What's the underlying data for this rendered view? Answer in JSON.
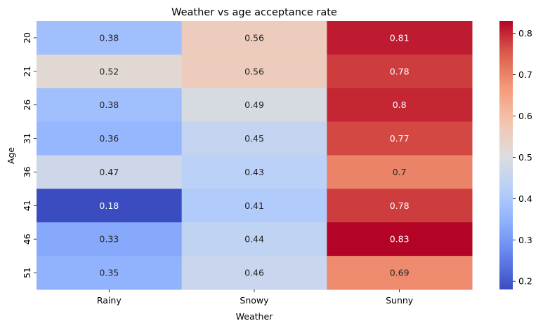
{
  "chart_data": {
    "type": "heatmap",
    "title": "Weather vs age acceptance rate",
    "xlabel": "Weather",
    "ylabel": "Age",
    "x_categories": [
      "Rainy",
      "Snowy",
      "Sunny"
    ],
    "y_categories": [
      "20",
      "21",
      "26",
      "31",
      "36",
      "41",
      "46",
      "51"
    ],
    "values": [
      [
        0.38,
        0.56,
        0.81
      ],
      [
        0.52,
        0.56,
        0.78
      ],
      [
        0.38,
        0.49,
        0.8
      ],
      [
        0.36,
        0.45,
        0.77
      ],
      [
        0.47,
        0.43,
        0.7
      ],
      [
        0.18,
        0.41,
        0.78
      ],
      [
        0.33,
        0.44,
        0.83
      ],
      [
        0.35,
        0.46,
        0.69
      ]
    ],
    "annotations": [
      [
        "0.38",
        "0.56",
        "0.81"
      ],
      [
        "0.52",
        "0.56",
        "0.78"
      ],
      [
        "0.38",
        "0.49",
        "0.8"
      ],
      [
        "0.36",
        "0.45",
        "0.77"
      ],
      [
        "0.47",
        "0.43",
        "0.7"
      ],
      [
        "0.18",
        "0.41",
        "0.78"
      ],
      [
        "0.33",
        "0.44",
        "0.83"
      ],
      [
        "0.35",
        "0.46",
        "0.69"
      ]
    ],
    "colormap": "coolwarm",
    "colorbar": {
      "min": 0.18,
      "max": 0.83,
      "ticks": [
        0.2,
        0.3,
        0.4,
        0.5,
        0.6,
        0.7,
        0.8
      ],
      "tick_labels": [
        "0.2",
        "0.3",
        "0.4",
        "0.5",
        "0.6",
        "0.7",
        "0.8"
      ]
    },
    "grid": false,
    "legend": "colorbar-right"
  }
}
